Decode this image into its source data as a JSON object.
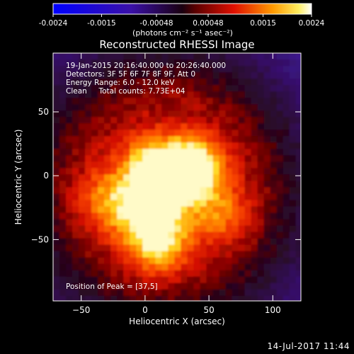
{
  "colorbar": {
    "colormap": "hot (black-blue-purple-red-orange-yellow-white)",
    "range": [
      -0.0024,
      0.0024
    ],
    "ticks": [
      "-0.0024",
      "-0.0015",
      "-0.00048",
      "0.00048",
      "0.0015",
      "0.0024"
    ],
    "units_line": "(photons cm⁻² s⁻¹ asec⁻²)"
  },
  "chart_data": {
    "type": "heatmap",
    "title": "Reconstructed RHESSI Image",
    "xlabel": "Heliocentric X (arcsec)",
    "ylabel": "Heliocentric Y (arcsec)",
    "xlim": [
      -72,
      122
    ],
    "ylim": [
      -98,
      96
    ],
    "x_ticks": [
      -50,
      0,
      50,
      100
    ],
    "y_ticks": [
      -50,
      0,
      50
    ],
    "x_tick_labels": [
      "−50",
      "0",
      "50",
      "100"
    ],
    "y_tick_labels": [
      "−50",
      "0",
      "50"
    ],
    "grid": false,
    "peak_position": [
      37,
      5
    ],
    "sources": [
      {
        "x": 37,
        "y": 5,
        "relative_intensity": 1.0
      },
      {
        "x": 8,
        "y": 2,
        "relative_intensity": 0.95
      },
      {
        "x": 5,
        "y": -32,
        "relative_intensity": 0.75
      },
      {
        "x": 10,
        "y": -55,
        "relative_intensity": 0.55
      },
      {
        "x": -28,
        "y": -20,
        "relative_intensity": 0.45
      },
      {
        "x": 60,
        "y": -30,
        "relative_intensity": 0.35
      }
    ],
    "annotations": [
      "19-Jan-2015 20:16:40.000 to 20:26:40.000",
      "Detectors: 3F 5F 6F 7F 8F 9F, Att 0",
      "Energy Range: 6.0 - 12.0 keV",
      "Clean     Total counts: 7.73E+04",
      "Position of Peak = [37,5]"
    ]
  },
  "footer": {
    "timestamp": "14-Jul-2017 11:44"
  }
}
